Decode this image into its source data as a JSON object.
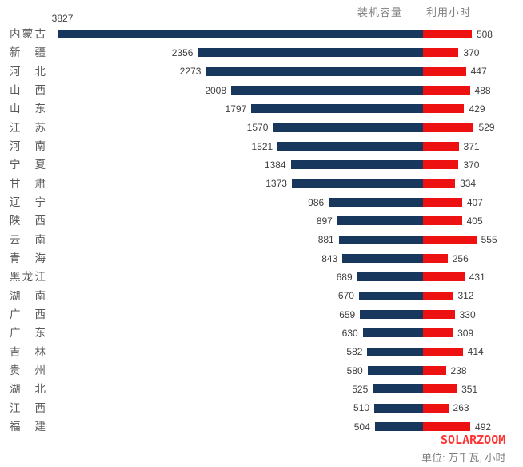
{
  "legend": {
    "capacity": "装机容量",
    "hours": "利用小时"
  },
  "footer": {
    "brand": "SOLARZOOM",
    "unit_note": "单位: 万千瓦, 小时"
  },
  "colors": {
    "capacity_bar": "#17375d",
    "hours_bar": "#ee1111",
    "province_text": "#595959",
    "value_text": "#404040",
    "legend_text": "#7f7f7f",
    "brand_text": "#ff3333"
  },
  "chart_data": {
    "type": "bar",
    "variant": "diverging-horizontal",
    "title": "",
    "unit": "万千瓦, 小时",
    "legend_position": "top-right",
    "grid": false,
    "categories": [
      "内蒙古",
      "新疆",
      "河北",
      "山西",
      "山东",
      "江苏",
      "河南",
      "宁夏",
      "甘肃",
      "辽宁",
      "陕西",
      "云南",
      "青海",
      "黑龙江",
      "湖南",
      "广西",
      "广东",
      "吉林",
      "贵州",
      "湖北",
      "江西",
      "福建"
    ],
    "series": [
      {
        "name": "装机容量",
        "direction": "left",
        "color": "#17375d",
        "values": [
          3827,
          2356,
          2273,
          2008,
          1797,
          1570,
          1521,
          1384,
          1373,
          986,
          897,
          881,
          843,
          689,
          670,
          659,
          630,
          582,
          580,
          525,
          510,
          504
        ]
      },
      {
        "name": "利用小时",
        "direction": "right",
        "color": "#ee1111",
        "values": [
          508,
          370,
          447,
          488,
          429,
          529,
          371,
          370,
          334,
          407,
          405,
          555,
          256,
          431,
          312,
          330,
          309,
          414,
          238,
          351,
          263,
          492
        ]
      }
    ]
  }
}
